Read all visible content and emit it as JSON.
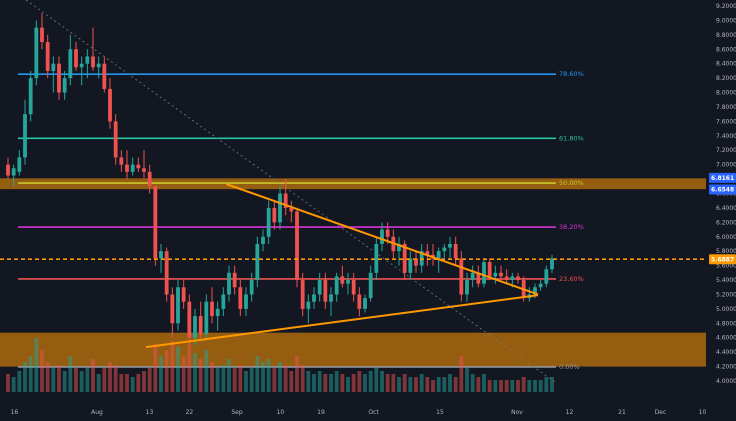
{
  "chart_data": {
    "type": "candlestick",
    "grid": false,
    "ylim": [
      4.0,
      9.2
    ],
    "y_ticks": [
      "9.2000",
      "9.0000",
      "8.8000",
      "8.6000",
      "8.4000",
      "8.2000",
      "8.0000",
      "7.8000",
      "7.6000",
      "7.4000",
      "7.2000",
      "7.0000",
      "6.8000",
      "6.6000",
      "6.4000",
      "6.2000",
      "6.0000",
      "5.8000",
      "5.6000",
      "5.4000",
      "5.2000",
      "5.0000",
      "4.8000",
      "4.6000",
      "4.4000",
      "4.2000",
      "4.0000"
    ],
    "x_ticks": [
      "16",
      "Aug",
      "13",
      "22",
      "Sep",
      "10",
      "19",
      "Oct",
      "15",
      "Nov",
      "12",
      "21",
      "Dec",
      "10"
    ],
    "price_tags": [
      {
        "value": 6.8161,
        "label": "6.8161",
        "color": "#2962ff"
      },
      {
        "value": 6.6548,
        "label": "6.6548",
        "color": "#2962ff"
      },
      {
        "value": 5.6887,
        "label": "5.6887",
        "color": "#ff9800"
      }
    ],
    "fib_levels": [
      {
        "label": "78.60%",
        "value": 8.255,
        "color": "#2196f3"
      },
      {
        "label": "61.80%",
        "value": 7.365,
        "color": "#26c6a1"
      },
      {
        "label": "50.00%",
        "value": 6.745,
        "color": "#c8c82a"
      },
      {
        "label": "38.20%",
        "value": 6.135,
        "color": "#d633d6"
      },
      {
        "label": "23.60%",
        "value": 5.415,
        "color": "#ef5350"
      },
      {
        "label": "0.00%",
        "value": 4.195,
        "color": "#9598a1"
      }
    ],
    "zones": [
      {
        "from": 6.66,
        "to": 6.81,
        "color": "#ff9800"
      },
      {
        "from": 4.2,
        "to": 4.67,
        "color": "#ff9800"
      }
    ],
    "current_price_line": 5.6887,
    "triangle": {
      "upper": [
        [
          0.315,
          6.73
        ],
        [
          0.76,
          5.2
        ]
      ],
      "lower": [
        [
          0.2,
          4.47
        ],
        [
          0.76,
          5.19
        ]
      ]
    },
    "volume_max": 1.0,
    "candles": [
      [
        7.0,
        7.1,
        6.8,
        6.85
      ],
      [
        6.85,
        7.0,
        6.7,
        6.95
      ],
      [
        6.9,
        7.2,
        6.85,
        7.1
      ],
      [
        7.1,
        7.9,
        7.0,
        7.7
      ],
      [
        7.7,
        8.3,
        7.6,
        8.2
      ],
      [
        8.2,
        9.0,
        8.1,
        8.9
      ],
      [
        8.9,
        9.1,
        8.6,
        8.7
      ],
      [
        8.7,
        8.8,
        8.2,
        8.3
      ],
      [
        8.3,
        8.5,
        8.0,
        8.4
      ],
      [
        8.4,
        8.5,
        7.9,
        8.0
      ],
      [
        8.0,
        8.3,
        7.9,
        8.2
      ],
      [
        8.2,
        8.8,
        8.1,
        8.6
      ],
      [
        8.6,
        8.7,
        8.3,
        8.35
      ],
      [
        8.35,
        8.5,
        8.1,
        8.4
      ],
      [
        8.4,
        8.6,
        8.2,
        8.5
      ],
      [
        8.5,
        8.9,
        8.3,
        8.35
      ],
      [
        8.35,
        8.5,
        8.2,
        8.4
      ],
      [
        8.4,
        8.5,
        8.0,
        8.05
      ],
      [
        8.05,
        8.2,
        7.5,
        7.6
      ],
      [
        7.6,
        7.7,
        7.0,
        7.1
      ],
      [
        7.1,
        7.2,
        6.9,
        7.0
      ],
      [
        7.0,
        7.2,
        6.8,
        6.9
      ],
      [
        6.9,
        7.1,
        6.85,
        7.0
      ],
      [
        7.0,
        7.1,
        6.9,
        6.95
      ],
      [
        6.95,
        7.2,
        6.8,
        6.9
      ],
      [
        6.9,
        7.0,
        6.6,
        6.7
      ],
      [
        6.7,
        6.7,
        5.6,
        5.7
      ],
      [
        5.7,
        5.9,
        5.5,
        5.8
      ],
      [
        5.8,
        5.85,
        5.1,
        5.2
      ],
      [
        5.2,
        5.3,
        4.6,
        4.8
      ],
      [
        4.8,
        5.4,
        4.7,
        5.3
      ],
      [
        5.3,
        5.4,
        5.0,
        5.1
      ],
      [
        5.1,
        5.2,
        4.5,
        4.6
      ],
      [
        4.6,
        5.0,
        4.5,
        4.9
      ],
      [
        4.9,
        5.1,
        4.6,
        4.65
      ],
      [
        4.65,
        5.2,
        4.6,
        5.1
      ],
      [
        5.1,
        5.3,
        4.8,
        4.9
      ],
      [
        4.9,
        5.1,
        4.7,
        5.0
      ],
      [
        5.0,
        5.3,
        4.9,
        5.2
      ],
      [
        5.2,
        5.6,
        5.1,
        5.5
      ],
      [
        5.5,
        5.6,
        5.2,
        5.3
      ],
      [
        5.3,
        5.4,
        4.9,
        5.0
      ],
      [
        5.0,
        5.3,
        4.9,
        5.2
      ],
      [
        5.2,
        5.5,
        5.1,
        5.4
      ],
      [
        5.4,
        6.0,
        5.3,
        5.9
      ],
      [
        5.9,
        6.1,
        5.8,
        6.0
      ],
      [
        6.0,
        6.5,
        5.9,
        6.4
      ],
      [
        6.4,
        6.5,
        6.1,
        6.2
      ],
      [
        6.2,
        6.7,
        6.1,
        6.6
      ],
      [
        6.6,
        6.8,
        6.3,
        6.4
      ],
      [
        6.4,
        6.5,
        6.2,
        6.35
      ],
      [
        6.35,
        6.4,
        5.3,
        5.4
      ],
      [
        5.4,
        5.5,
        4.9,
        5.0
      ],
      [
        5.0,
        5.2,
        4.8,
        5.1
      ],
      [
        5.1,
        5.3,
        5.0,
        5.2
      ],
      [
        5.2,
        5.5,
        5.1,
        5.4
      ],
      [
        5.4,
        5.5,
        5.0,
        5.1
      ],
      [
        5.1,
        5.3,
        4.9,
        5.2
      ],
      [
        5.2,
        5.5,
        5.1,
        5.45
      ],
      [
        5.45,
        5.6,
        5.3,
        5.35
      ],
      [
        5.35,
        5.5,
        5.2,
        5.4
      ],
      [
        5.4,
        5.5,
        5.1,
        5.2
      ],
      [
        5.2,
        5.3,
        4.9,
        5.0
      ],
      [
        5.0,
        5.2,
        4.95,
        5.15
      ],
      [
        5.15,
        5.6,
        5.1,
        5.5
      ],
      [
        5.5,
        6.0,
        5.4,
        5.9
      ],
      [
        5.9,
        6.2,
        5.8,
        6.1
      ],
      [
        6.1,
        6.2,
        5.9,
        6.0
      ],
      [
        6.0,
        6.1,
        5.7,
        5.8
      ],
      [
        5.8,
        6.0,
        5.6,
        5.9
      ],
      [
        5.9,
        5.95,
        5.4,
        5.5
      ],
      [
        5.5,
        5.8,
        5.4,
        5.7
      ],
      [
        5.7,
        5.8,
        5.5,
        5.6
      ],
      [
        5.6,
        5.9,
        5.5,
        5.8
      ],
      [
        5.8,
        5.9,
        5.6,
        5.75
      ],
      [
        5.75,
        5.9,
        5.6,
        5.7
      ],
      [
        5.7,
        5.85,
        5.5,
        5.8
      ],
      [
        5.8,
        5.9,
        5.7,
        5.85
      ],
      [
        5.85,
        6.0,
        5.7,
        5.9
      ],
      [
        5.9,
        6.0,
        5.6,
        5.7
      ],
      [
        5.7,
        5.8,
        5.1,
        5.2
      ],
      [
        5.2,
        5.5,
        5.1,
        5.4
      ],
      [
        5.4,
        5.6,
        5.3,
        5.5
      ],
      [
        5.5,
        5.6,
        5.3,
        5.35
      ],
      [
        5.35,
        5.7,
        5.3,
        5.65
      ],
      [
        5.65,
        5.7,
        5.4,
        5.45
      ],
      [
        5.45,
        5.6,
        5.35,
        5.5
      ],
      [
        5.5,
        5.6,
        5.4,
        5.45
      ],
      [
        5.45,
        5.55,
        5.35,
        5.4
      ],
      [
        5.4,
        5.5,
        5.3,
        5.45
      ],
      [
        5.45,
        5.5,
        5.35,
        5.4
      ],
      [
        5.4,
        5.45,
        5.1,
        5.15
      ],
      [
        5.15,
        5.3,
        5.1,
        5.2
      ],
      [
        5.2,
        5.35,
        5.15,
        5.3
      ],
      [
        5.3,
        5.4,
        5.25,
        5.35
      ],
      [
        5.35,
        5.6,
        5.3,
        5.55
      ],
      [
        5.55,
        5.75,
        5.5,
        5.7
      ]
    ],
    "volumes": [
      0.3,
      0.25,
      0.35,
      0.5,
      0.6,
      0.9,
      0.7,
      0.5,
      0.4,
      0.45,
      0.35,
      0.6,
      0.4,
      0.35,
      0.4,
      0.55,
      0.3,
      0.4,
      0.5,
      0.45,
      0.3,
      0.3,
      0.25,
      0.3,
      0.35,
      0.4,
      0.8,
      0.6,
      0.7,
      0.85,
      0.75,
      0.6,
      0.8,
      0.65,
      0.55,
      0.7,
      0.5,
      0.4,
      0.45,
      0.55,
      0.4,
      0.45,
      0.35,
      0.4,
      0.6,
      0.5,
      0.55,
      0.4,
      0.5,
      0.45,
      0.35,
      0.6,
      0.45,
      0.35,
      0.3,
      0.35,
      0.3,
      0.3,
      0.35,
      0.3,
      0.25,
      0.3,
      0.35,
      0.3,
      0.35,
      0.4,
      0.35,
      0.3,
      0.3,
      0.25,
      0.3,
      0.25,
      0.25,
      0.3,
      0.25,
      0.2,
      0.25,
      0.25,
      0.3,
      0.25,
      0.6,
      0.4,
      0.3,
      0.25,
      0.3,
      0.2,
      0.2,
      0.2,
      0.2,
      0.2,
      0.2,
      0.25,
      0.2,
      0.2,
      0.2,
      0.25,
      0.25
    ]
  }
}
